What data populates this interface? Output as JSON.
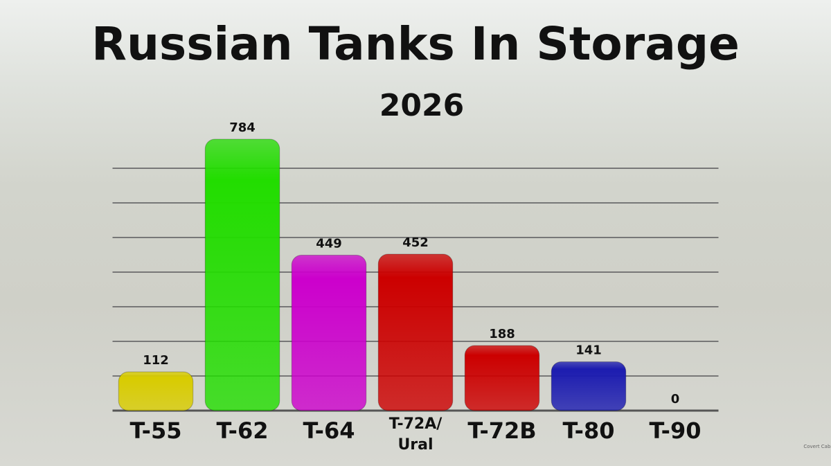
{
  "chart_data": {
    "type": "bar",
    "title": "Russian Tanks In Storage",
    "subtitle": "2026",
    "categories": [
      "T-55",
      "T-62",
      "T-64",
      "T-72A/\nUral",
      "T-72B",
      "T-80",
      "T-90"
    ],
    "values": [
      112,
      784,
      449,
      452,
      188,
      141,
      0
    ],
    "colors": [
      "#d8cc00",
      "#22dd00",
      "#cc00cc",
      "#cc0000",
      "#cc0000",
      "#1c1cb0",
      "#888888"
    ],
    "ylim": [
      0,
      800
    ],
    "yticks": [
      0,
      100,
      200,
      300,
      400,
      500,
      600,
      700
    ],
    "grid": true,
    "watermark": "Covert Cabal"
  }
}
